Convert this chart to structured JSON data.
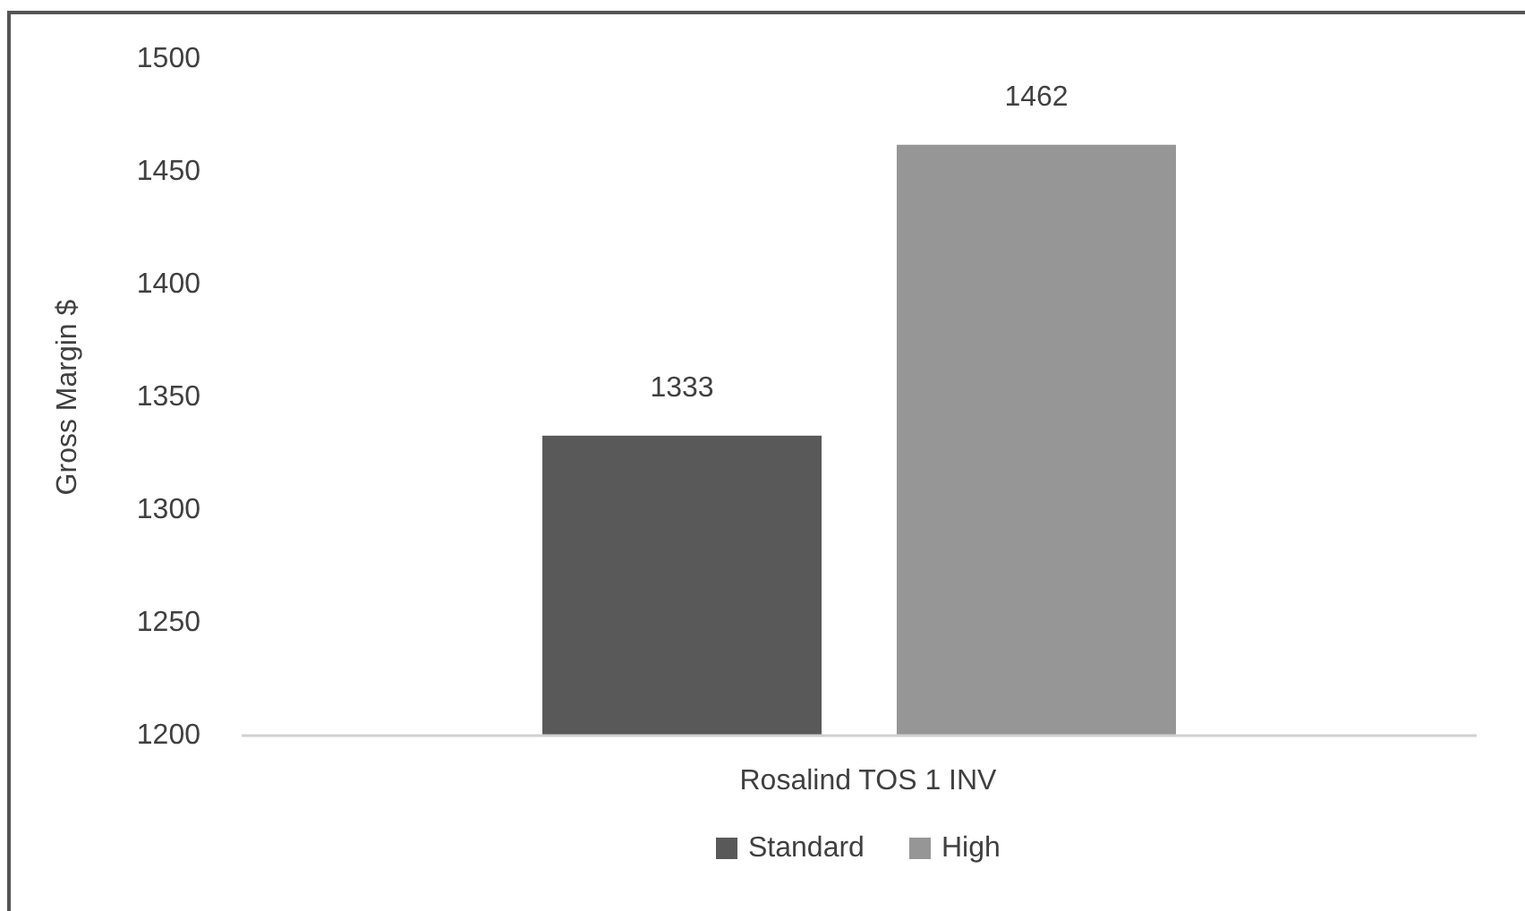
{
  "chart_data": {
    "type": "bar",
    "ylabel": "Gross Margin $",
    "categories": [
      "Rosalind TOS 1 INV"
    ],
    "series": [
      {
        "name": "Standard",
        "color": "#595959",
        "values": [
          1333
        ]
      },
      {
        "name": "High",
        "color": "#969696",
        "values": [
          1462
        ]
      }
    ],
    "ylim": [
      1200,
      1500
    ],
    "yticks": [
      1200,
      1250,
      1300,
      1350,
      1400,
      1450,
      1500
    ],
    "data_labels": true,
    "legend": "bottom"
  }
}
